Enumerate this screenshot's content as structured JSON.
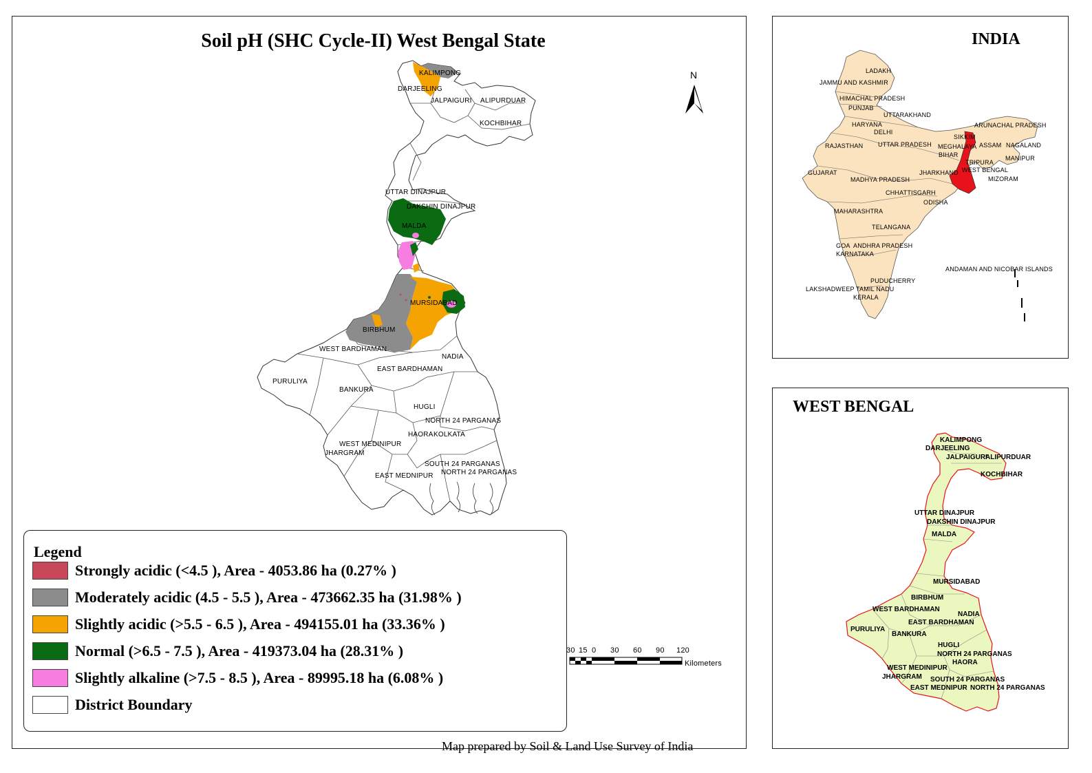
{
  "title": "Soil pH (SHC Cycle-II) West Bengal State",
  "north_label": "N",
  "credit": "Map prepared by Soil & Land Use Survey of India",
  "scale": {
    "ticks": [
      "30",
      "15",
      "0",
      "30",
      "60",
      "90",
      "120"
    ],
    "unit": "Kilometers"
  },
  "legend": {
    "title": "Legend",
    "items": [
      {
        "label": "Strongly acidic  (<4.5 ), Area - 4053.86  ha (0.27% )",
        "color": "#C8475A"
      },
      {
        "label": "Moderately acidic  (4.5 - 5.5 ), Area - 473662.35  ha (31.98% )",
        "color": "#8C8C8C"
      },
      {
        "label": "Slightly acidic  (>5.5 - 6.5 ), Area - 494155.01  ha (33.36% )",
        "color": "#F5A300"
      },
      {
        "label": "Normal  (>6.5 - 7.5 ), Area - 419373.04  ha (28.31% )",
        "color": "#0A6B12"
      },
      {
        "label": "Slightly alkaline  (>7.5 - 8.5 ), Area - 89995.18  ha (6.08% )",
        "color": "#F77DE0"
      },
      {
        "label": "District Boundary",
        "color": "#FFFFFF"
      }
    ]
  },
  "main_map": {
    "districts": [
      "KALIMPONG",
      "DARJEELING",
      "JALPAIGURI",
      "ALIPURDUAR",
      "KOCHBIHAR",
      "UTTAR DINAJPUR",
      "DAKSHIN DINAJPUR",
      "MALDA",
      "MURSIDABAD",
      "BIRBHUM",
      "WEST BARDHAMAN",
      "NADIA",
      "EAST BARDHAMAN",
      "PURULIYA",
      "BANKURA",
      "HUGLI",
      "NORTH 24 PARGANAS",
      "HAORA",
      "KOLKATA",
      "WEST MEDINIPUR",
      "JHARGRAM",
      "SOUTH 24 PARGANAS",
      "EAST MEDNIPUR",
      "NORTH 24 PARGANAS"
    ]
  },
  "india_inset": {
    "title": "INDIA",
    "states": [
      "LADAKH",
      "JAMMU AND KASHMIR",
      "HIMACHAL PRADESH",
      "PUNJAB",
      "UTTARAKHAND",
      "HARYANA",
      "DELHI",
      "ARUNACHAL PRADESH",
      "SIKKIM",
      "RAJASTHAN",
      "UTTAR PRADESH",
      "MEGHALAYA",
      "ASSAM",
      "NAGALAND",
      "BIHAR",
      "TRIPURA",
      "MANIPUR",
      "GUJARAT",
      "WEST BENGAL",
      "JHARKHAND",
      "MIZORAM",
      "MADHYA PRADESH",
      "CHHATTISGARH",
      "ODISHA",
      "MAHARASHTRA",
      "TELANGANA",
      "GOA",
      "ANDHRA PRADESH",
      "KARNATAKA",
      "ANDAMAN AND NICOBAR ISLANDS",
      "PUDUCHERRY",
      "LAKSHADWEEP",
      "TAMIL NADU",
      "KERALA"
    ],
    "highlight_color": "#E8121A",
    "land_color": "#FBE3BF"
  },
  "wb_inset": {
    "title": "WEST BENGAL",
    "districts": [
      "KALIMPONG",
      "DARJEELING",
      "JALPAIGURI",
      "ALIPURDUAR",
      "KOCHBIHAR",
      "UTTAR DINAJPUR",
      "DAKSHIN DINAJPUR",
      "MALDA",
      "MURSIDABAD",
      "BIRBHUM",
      "WEST BARDHAMAN",
      "NADIA",
      "PURULIYA",
      "EAST BARDHAMAN",
      "BANKURA",
      "HUGLI",
      "NORTH 24 PARGANAS",
      "HAORA",
      "WEST MEDINIPUR",
      "JHARGRAM",
      "SOUTH 24 PARGANAS",
      "EAST MEDNIPUR",
      "NORTH 24 PARGANAS"
    ],
    "fill_color": "#EAF7BE",
    "boundary_color": "#E8121A"
  }
}
